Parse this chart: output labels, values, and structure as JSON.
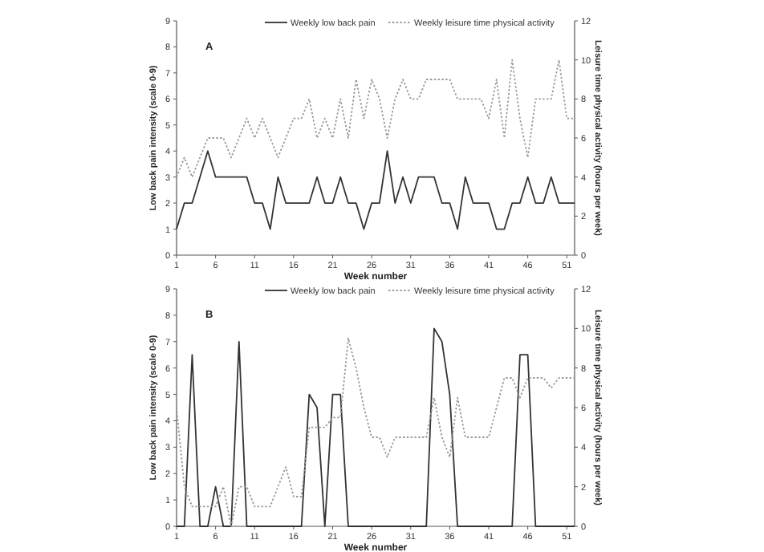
{
  "chart_data": [
    {
      "type": "line",
      "annotations": [
        "A"
      ],
      "xlabel": "Week number",
      "ylabel": "Low back pain intensity (scale 0-9)",
      "y2label": "Leisure time physical activity (hours per week)",
      "x": [
        1,
        2,
        3,
        4,
        5,
        6,
        7,
        8,
        9,
        10,
        11,
        12,
        13,
        14,
        15,
        16,
        17,
        18,
        19,
        20,
        21,
        22,
        23,
        24,
        25,
        26,
        27,
        28,
        29,
        30,
        31,
        32,
        33,
        34,
        35,
        36,
        37,
        38,
        39,
        40,
        41,
        42,
        43,
        44,
        45,
        46,
        47,
        48,
        49,
        50,
        51,
        52
      ],
      "series": [
        {
          "name": "Weekly low back pain",
          "color": "#333333",
          "line_style": "solid",
          "values": [
            1,
            2,
            2,
            3,
            4,
            3,
            3,
            3,
            3,
            3,
            2,
            2,
            1,
            3,
            2,
            2,
            2,
            2,
            3,
            2,
            2,
            3,
            2,
            2,
            1,
            2,
            2,
            4,
            2,
            3,
            2,
            3,
            3,
            3,
            2,
            2,
            1,
            3,
            2,
            2,
            2,
            1,
            1,
            2,
            2,
            3,
            2,
            2,
            3,
            2,
            2,
            2
          ]
        },
        {
          "name": "Weekly leisure time physical activity",
          "color": "#999999",
          "line_style": "dotted",
          "axis": "y2",
          "values": [
            4,
            5,
            4,
            5,
            6,
            6,
            6,
            5,
            6,
            7,
            6,
            7,
            6,
            5,
            6,
            7,
            7,
            8,
            6,
            7,
            6,
            8,
            6,
            9,
            7,
            9,
            8,
            6,
            8,
            9,
            8,
            8,
            9,
            9,
            9,
            9,
            8,
            8,
            8,
            8,
            7,
            9,
            6,
            10,
            7,
            5,
            8,
            8,
            8,
            10,
            7,
            7
          ]
        }
      ],
      "xlim": [
        1,
        52
      ],
      "xticks": [
        1,
        6,
        11,
        16,
        21,
        26,
        31,
        36,
        41,
        46,
        51
      ],
      "ylim": [
        0,
        9
      ],
      "yticks": [
        0,
        1,
        2,
        3,
        4,
        5,
        6,
        7,
        8,
        9
      ],
      "y2lim": [
        0,
        12
      ],
      "y2ticks": [
        0,
        2,
        4,
        6,
        8,
        10,
        12
      ],
      "legend": "top",
      "grid": false
    },
    {
      "type": "line",
      "annotations": [
        "B"
      ],
      "xlabel": "Week number",
      "ylabel": "Low back pain intensity (scale 0-9)",
      "y2label": "Leisure time physical activity (hours per week)",
      "x": [
        1,
        2,
        3,
        4,
        5,
        6,
        7,
        8,
        9,
        10,
        11,
        12,
        13,
        14,
        15,
        16,
        17,
        18,
        19,
        20,
        21,
        22,
        23,
        24,
        25,
        26,
        27,
        28,
        29,
        30,
        31,
        32,
        33,
        34,
        35,
        36,
        37,
        38,
        39,
        40,
        41,
        42,
        43,
        44,
        45,
        46,
        47,
        48,
        49,
        50,
        51,
        52
      ],
      "series": [
        {
          "name": "Weekly low back pain",
          "color": "#333333",
          "line_style": "solid",
          "values": [
            0,
            0,
            6.5,
            0,
            0,
            1.5,
            0,
            0,
            7,
            0,
            0,
            0,
            0,
            0,
            0,
            0,
            0,
            5,
            4.5,
            0,
            5,
            5,
            0,
            0,
            0,
            0,
            0,
            0,
            0,
            0,
            0,
            0,
            0,
            7.5,
            7,
            5,
            0,
            0,
            0,
            0,
            0,
            0,
            0,
            0,
            6.5,
            6.5,
            0,
            0,
            0,
            0,
            0,
            0
          ]
        },
        {
          "name": "Weekly leisure time physical activity",
          "color": "#999999",
          "line_style": "dotted",
          "axis": "y2",
          "values": [
            6,
            2,
            1,
            1,
            1,
            1,
            2,
            0,
            2,
            2,
            1,
            1,
            1,
            2,
            3,
            1.5,
            1.5,
            5,
            5,
            5,
            5.5,
            5.5,
            9.5,
            8,
            6,
            4.5,
            4.5,
            3.5,
            4.5,
            4.5,
            4.5,
            4.5,
            4.5,
            6.5,
            4.5,
            3.5,
            6.5,
            4.5,
            4.5,
            4.5,
            4.5,
            6,
            7.5,
            7.5,
            6.5,
            7.5,
            7.5,
            7.5,
            7,
            7.5,
            7.5,
            7.5
          ]
        }
      ],
      "xlim": [
        1,
        52
      ],
      "xticks": [
        1,
        6,
        11,
        16,
        21,
        26,
        31,
        36,
        41,
        46,
        51
      ],
      "ylim": [
        0,
        9
      ],
      "yticks": [
        0,
        1,
        2,
        3,
        4,
        5,
        6,
        7,
        8,
        9
      ],
      "y2lim": [
        0,
        12
      ],
      "y2ticks": [
        0,
        2,
        4,
        6,
        8,
        10,
        12
      ],
      "legend": "top",
      "grid": false
    }
  ]
}
